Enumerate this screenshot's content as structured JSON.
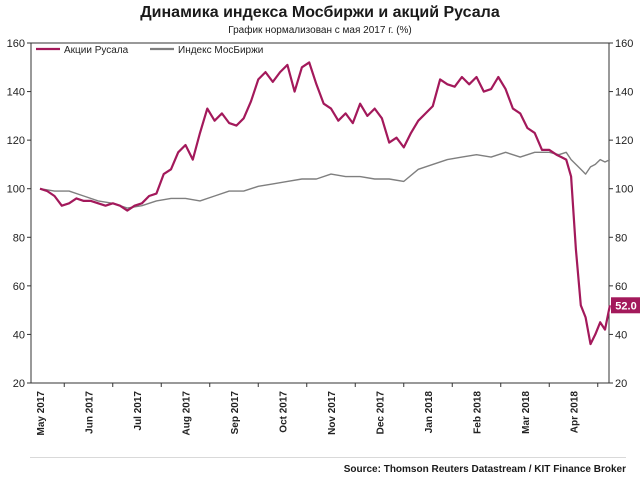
{
  "header": {
    "title": "Динамика индекса Мосбиржи и акций Русала",
    "subtitle": "График нормализован с мая 2017 г. (%)"
  },
  "footer": {
    "source": "Source: Thomson Reuters Datastream / KIT Finance Broker"
  },
  "colors": {
    "rusal": "#a3195b",
    "moex": "#7f7f7f",
    "grid": "#d9d9d9",
    "axis": "#333333"
  },
  "chart_data": {
    "type": "line",
    "title": "Динамика индекса Мосбиржи и акций Русала",
    "subtitle": "График нормализован с мая 2017 г. (%)",
    "ylim": [
      20,
      160
    ],
    "yticks": [
      20,
      40,
      60,
      80,
      100,
      120,
      140,
      160
    ],
    "x_categories": [
      "May 2017",
      "Jun 2017",
      "Jul 2017",
      "Aug 2017",
      "Sep 2017",
      "Oct 2017",
      "Nov 2017",
      "Dec 2017",
      "Jan 2018",
      "Feb 2018",
      "Mar 2018",
      "Apr 2018"
    ],
    "grid": false,
    "legend_position": "top-left",
    "last_value_label": "52.0",
    "series": [
      {
        "name": "Акции Русала",
        "color": "#a3195b",
        "x": [
          0,
          0.15,
          0.3,
          0.45,
          0.6,
          0.75,
          0.9,
          1.05,
          1.2,
          1.35,
          1.5,
          1.65,
          1.8,
          1.95,
          2.1,
          2.25,
          2.4,
          2.55,
          2.7,
          2.85,
          3,
          3.15,
          3.3,
          3.45,
          3.6,
          3.75,
          3.9,
          4.05,
          4.2,
          4.35,
          4.5,
          4.65,
          4.8,
          4.95,
          5.1,
          5.25,
          5.4,
          5.55,
          5.7,
          5.85,
          6,
          6.15,
          6.3,
          6.45,
          6.6,
          6.75,
          6.9,
          7.05,
          7.2,
          7.35,
          7.5,
          7.65,
          7.8,
          7.95,
          8.1,
          8.25,
          8.4,
          8.55,
          8.7,
          8.85,
          9,
          9.15,
          9.3,
          9.45,
          9.6,
          9.75,
          9.9,
          10.05,
          10.2,
          10.35,
          10.5,
          10.65,
          10.75,
          10.85,
          10.95,
          11.05,
          11.15,
          11.25,
          11.35,
          11.45,
          11.55,
          11.65,
          11.75
        ],
        "values": [
          100,
          99,
          97,
          93,
          94,
          96,
          95,
          95,
          94,
          93,
          94,
          93,
          91,
          93,
          94,
          97,
          98,
          106,
          108,
          115,
          118,
          112,
          123,
          133,
          128,
          131,
          127,
          126,
          129,
          136,
          145,
          148,
          144,
          148,
          151,
          140,
          150,
          152,
          143,
          135,
          133,
          128,
          131,
          127,
          135,
          130,
          133,
          129,
          119,
          121,
          117,
          123,
          128,
          131,
          134,
          145,
          143,
          142,
          146,
          143,
          146,
          140,
          141,
          146,
          141,
          133,
          131,
          125,
          123,
          116,
          116,
          114,
          113,
          112,
          105,
          75,
          52,
          47,
          36,
          40,
          45,
          42,
          52
        ]
      },
      {
        "name": "Индекс МосБиржи",
        "color": "#7f7f7f",
        "x": [
          0,
          0.3,
          0.6,
          0.9,
          1.2,
          1.5,
          1.8,
          2.1,
          2.4,
          2.7,
          3,
          3.3,
          3.6,
          3.9,
          4.2,
          4.5,
          4.8,
          5.1,
          5.4,
          5.7,
          6,
          6.3,
          6.6,
          6.9,
          7.2,
          7.5,
          7.8,
          8.1,
          8.4,
          8.7,
          9,
          9.3,
          9.6,
          9.9,
          10.2,
          10.5,
          10.7,
          10.85,
          10.95,
          11.05,
          11.15,
          11.25,
          11.35,
          11.45,
          11.55,
          11.65,
          11.75
        ],
        "values": [
          100,
          99,
          99,
          97,
          95,
          94,
          92,
          93,
          95,
          96,
          96,
          95,
          97,
          99,
          99,
          101,
          102,
          103,
          104,
          104,
          106,
          105,
          105,
          104,
          104,
          103,
          108,
          110,
          112,
          113,
          114,
          113,
          115,
          113,
          115,
          115,
          114,
          115,
          112,
          110,
          108,
          106,
          109,
          110,
          112,
          111,
          112
        ]
      }
    ]
  }
}
